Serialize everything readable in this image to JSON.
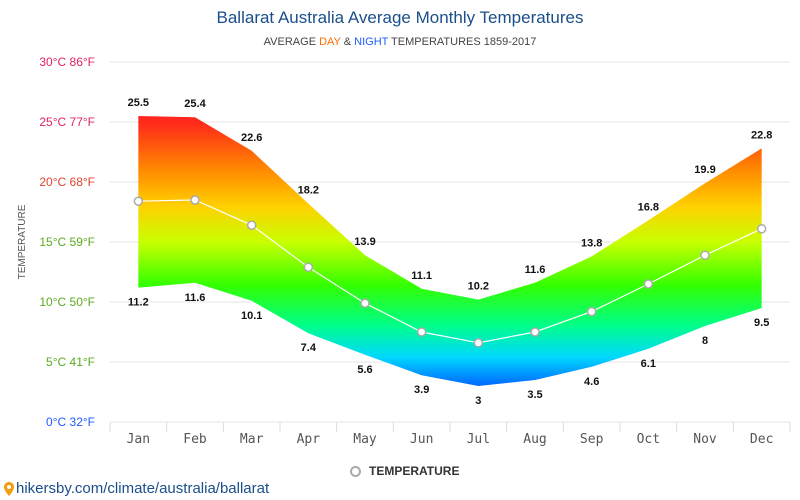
{
  "title": "Ballarat Australia Average Monthly Temperatures",
  "subtitle": {
    "prefix": "AVERAGE ",
    "day": "DAY",
    "amp": " & ",
    "night": "NIGHT",
    "suffix": " TEMPERATURES 1859-2017"
  },
  "legend": {
    "label": "TEMPERATURE"
  },
  "footer": {
    "url": "hikersby.com/climate/australia/ballarat"
  },
  "colors": {
    "title": "#1b4f8a",
    "day": "#ff6a00",
    "night": "#1f5cff",
    "line": "#ffffff",
    "point_stroke": "#aaaaaa"
  },
  "chart_data": {
    "type": "area",
    "title": "Ballarat Australia Average Monthly Temperatures",
    "ylabel": "TEMPERATURE",
    "ylim": [
      0,
      30
    ],
    "categories": [
      "Jan",
      "Feb",
      "Mar",
      "Apr",
      "May",
      "Jun",
      "Jul",
      "Aug",
      "Sep",
      "Oct",
      "Nov",
      "Dec"
    ],
    "y_ticks": [
      {
        "value": 0,
        "label": "0°C 32°F",
        "color": "#1f5cff"
      },
      {
        "value": 5,
        "label": "5°C 41°F",
        "color": "#5aaa1e"
      },
      {
        "value": 10,
        "label": "10°C 50°F",
        "color": "#5aaa1e"
      },
      {
        "value": 15,
        "label": "15°C 59°F",
        "color": "#5aaa1e"
      },
      {
        "value": 20,
        "label": "20°C 68°F",
        "color": "#e0452b"
      },
      {
        "value": 25,
        "label": "25°C 77°F",
        "color": "#e0245e"
      },
      {
        "value": 30,
        "label": "30°C 86°F",
        "color": "#e0245e"
      }
    ],
    "series": [
      {
        "name": "DAY",
        "values": [
          25.5,
          25.4,
          22.6,
          18.2,
          13.9,
          11.1,
          10.2,
          11.6,
          13.8,
          16.8,
          19.9,
          22.8
        ]
      },
      {
        "name": "NIGHT",
        "values": [
          11.2,
          11.6,
          10.1,
          7.4,
          5.6,
          3.9,
          3,
          3.5,
          4.6,
          6.1,
          8,
          9.5
        ]
      },
      {
        "name": "TEMPERATURE",
        "values": [
          18.4,
          18.5,
          16.4,
          12.9,
          9.9,
          7.5,
          6.6,
          7.5,
          9.2,
          11.5,
          13.9,
          16.1
        ]
      }
    ],
    "grid": true,
    "legend_position": "bottom-center"
  }
}
